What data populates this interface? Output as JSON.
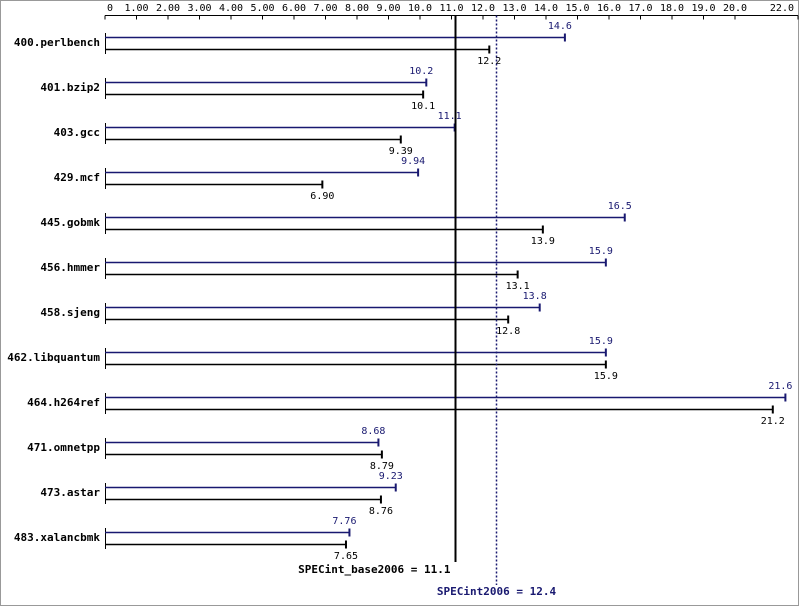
{
  "chart_data": {
    "type": "bar",
    "orientation": "horizontal",
    "categories": [
      "400.perlbench",
      "401.bzip2",
      "403.gcc",
      "429.mcf",
      "445.gobmk",
      "456.hmmer",
      "458.sjeng",
      "462.libquantum",
      "464.h264ref",
      "471.omnetpp",
      "473.astar",
      "483.xalancbmk"
    ],
    "series": [
      {
        "color": "#191970",
        "values": [
          14.6,
          10.2,
          11.1,
          9.94,
          16.5,
          15.9,
          13.8,
          15.9,
          21.6,
          8.68,
          9.23,
          7.76
        ],
        "value_labels": [
          "14.6",
          "10.2",
          "11.1",
          "9.94",
          "16.5",
          "15.9",
          "13.8",
          "15.9",
          "21.6",
          "8.68",
          "9.23",
          "7.76"
        ]
      },
      {
        "color": "#000000",
        "values": [
          12.2,
          10.1,
          9.39,
          6.9,
          13.9,
          13.1,
          12.8,
          15.9,
          21.2,
          8.79,
          8.76,
          7.65
        ],
        "value_labels": [
          "12.2",
          "10.1",
          "9.39",
          "6.90",
          "13.9",
          "13.1",
          "12.8",
          "15.9",
          "21.2",
          "8.79",
          "8.76",
          "7.65"
        ]
      }
    ],
    "xlim": [
      0,
      22
    ],
    "xticks": [
      0,
      {
        "value": 1,
        "label": "1.00"
      },
      {
        "value": 2,
        "label": "2.00"
      },
      {
        "value": 3,
        "label": "3.00"
      },
      {
        "value": 4,
        "label": "4.00"
      },
      {
        "value": 5,
        "label": "5.00"
      },
      {
        "value": 6,
        "label": "6.00"
      },
      {
        "value": 7,
        "label": "7.00"
      },
      {
        "value": 8,
        "label": "8.00"
      },
      {
        "value": 9,
        "label": "9.00"
      },
      {
        "value": 10,
        "label": "10.0"
      },
      {
        "value": 11,
        "label": "11.0"
      },
      {
        "value": 12,
        "label": "12.0"
      },
      {
        "value": 13,
        "label": "13.0"
      },
      {
        "value": 14,
        "label": "14.0"
      },
      {
        "value": 15,
        "label": "15.0"
      },
      {
        "value": 16,
        "label": "16.0"
      },
      {
        "value": 17,
        "label": "17.0"
      },
      {
        "value": 18,
        "label": "18.0"
      },
      {
        "value": 19,
        "label": "19.0"
      },
      {
        "value": 20,
        "label": "20.0"
      },
      {
        "value": 22,
        "label": "22.0"
      }
    ],
    "reference_lines": [
      {
        "label": "SPECint_base2006 = 11.1",
        "value": 11.1,
        "color": "#000000",
        "style": "solid"
      },
      {
        "label": "SPECint2006 = 12.4",
        "value": 12.4,
        "color": "#191970",
        "style": "dotted"
      }
    ]
  }
}
